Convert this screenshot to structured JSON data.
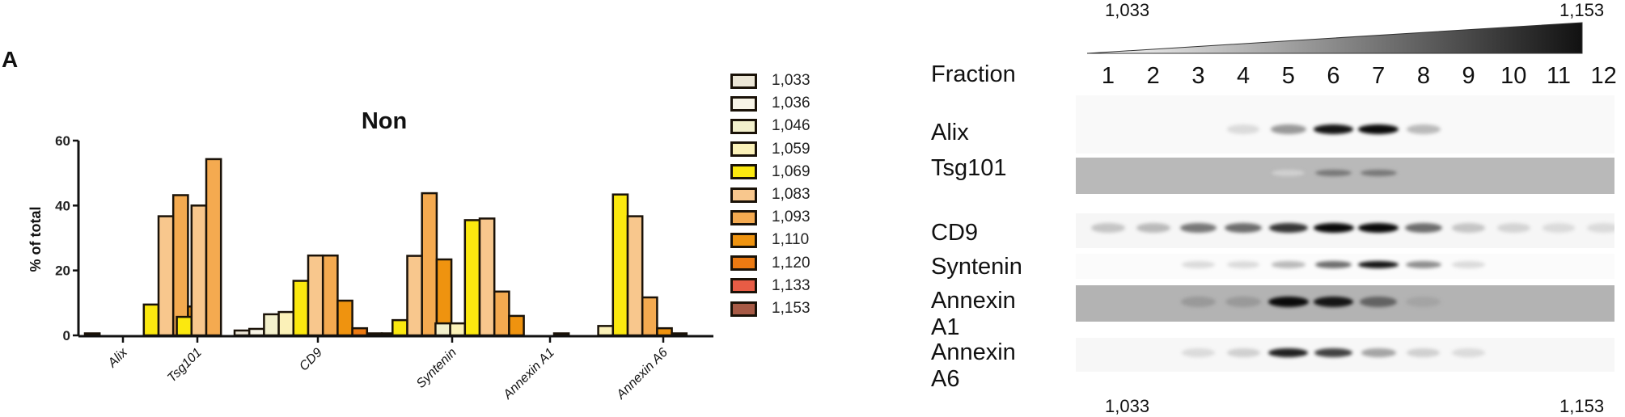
{
  "panel_label": "A",
  "chart_data": {
    "type": "bar",
    "title": "Non",
    "xlabel": "",
    "ylabel": "% of total",
    "ylim": [
      0,
      60
    ],
    "yticks": [
      0,
      20,
      40,
      60
    ],
    "grid": false,
    "legend_position": "right",
    "categories": [
      "Alix",
      "Tsg101",
      "CD9",
      "Syntenin",
      "Annexin A1",
      "Annexin A6"
    ],
    "series": [
      {
        "name": "1,033",
        "color": "#ece6d6",
        "values": [
          0.5,
          0,
          1.5,
          0,
          0,
          0.5
        ]
      },
      {
        "name": "1,036",
        "color": "#f8f4e6",
        "values": [
          0,
          0,
          2.0,
          0,
          0,
          0
        ]
      },
      {
        "name": "1,046",
        "color": "#f3f0cc",
        "values": [
          0,
          0,
          6.5,
          0,
          3.7,
          0
        ]
      },
      {
        "name": "1,059",
        "color": "#fbf1b8",
        "values": [
          0,
          0,
          7.2,
          0,
          3.7,
          2.9
        ]
      },
      {
        "name": "1,069",
        "color": "#fbe80f",
        "values": [
          9.5,
          5.7,
          16.8,
          4.7,
          35.5,
          43.4
        ]
      },
      {
        "name": "1,083",
        "color": "#f8c78d",
        "values": [
          36.7,
          40.0,
          24.6,
          24.5,
          36.0,
          36.7
        ]
      },
      {
        "name": "1,093",
        "color": "#f4aa50",
        "values": [
          43.2,
          54.3,
          24.6,
          43.8,
          13.5,
          11.7
        ]
      },
      {
        "name": "1,110",
        "color": "#ef930f",
        "values": [
          8.9,
          0,
          10.7,
          23.4,
          6.0,
          2.2
        ]
      },
      {
        "name": "1,120",
        "color": "#ec7a12",
        "values": [
          0,
          0,
          2.2,
          2.4,
          0,
          0.5
        ]
      },
      {
        "name": "1,133",
        "color": "#e75c45",
        "values": [
          0,
          0,
          0.5,
          0,
          0,
          0
        ]
      },
      {
        "name": "1,153",
        "color": "#a75a45",
        "values": [
          0,
          0,
          0.3,
          0,
          0,
          0
        ]
      }
    ]
  },
  "blot": {
    "density_low": "1,033",
    "density_high": "1,153",
    "fraction_label": "Fraction",
    "fractions": [
      "1",
      "2",
      "3",
      "4",
      "5",
      "6",
      "7",
      "8",
      "9",
      "10",
      "11",
      "12"
    ],
    "rows": [
      {
        "label": "Alix",
        "bands": [
          0,
          0,
          0,
          0.05,
          0.35,
          0.95,
          1.0,
          0.2,
          0,
          0,
          0,
          0
        ]
      },
      {
        "label": "Tsg101",
        "bands": [
          0,
          0,
          0,
          0,
          0.1,
          0.5,
          0.5,
          0,
          0,
          0,
          0,
          0
        ]
      },
      {
        "label": "CD9",
        "bands": [
          0.15,
          0.2,
          0.5,
          0.55,
          0.8,
          1.0,
          1.0,
          0.55,
          0.15,
          0.08,
          0.05,
          0.05
        ]
      },
      {
        "label": "Syntenin",
        "bands": [
          0,
          0,
          0.05,
          0.05,
          0.2,
          0.55,
          0.95,
          0.4,
          0.05,
          0,
          0,
          0
        ]
      },
      {
        "label": "Annexin A1",
        "bands": [
          0,
          0,
          0.35,
          0.35,
          1.0,
          0.95,
          0.6,
          0.3,
          0,
          0,
          0,
          0
        ]
      },
      {
        "label": "Annexin A6",
        "bands": [
          0,
          0,
          0.05,
          0.1,
          0.9,
          0.75,
          0.3,
          0.1,
          0.05,
          0,
          0,
          0
        ]
      }
    ]
  }
}
